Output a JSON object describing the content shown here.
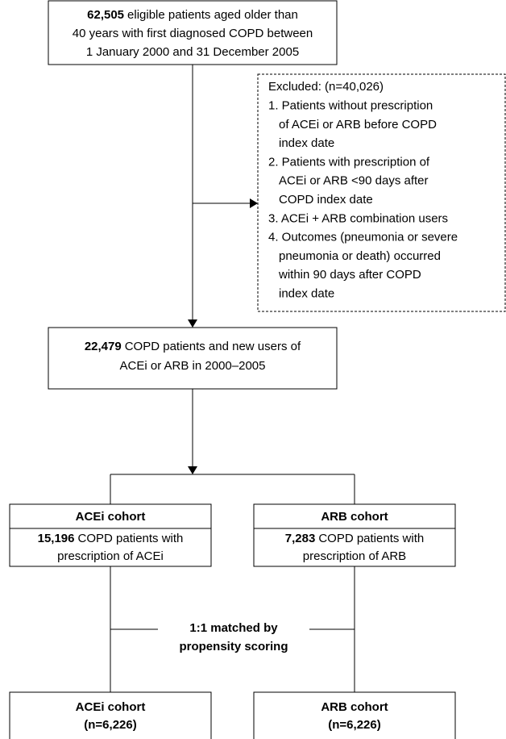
{
  "start": {
    "count": "62,505",
    "lines": [
      "eligible patients aged older than",
      "40 years with first diagnosed COPD between",
      "1 January 2000 and 31 December 2005"
    ]
  },
  "excluded": {
    "title": "Excluded: (n=40,026)",
    "lines": [
      "1. Patients without prescription",
      "of ACEi or ARB before COPD",
      "index date",
      "2. Patients with prescription of",
      "ACEi or ARB <90 days after",
      "COPD index date",
      "3. ACEi + ARB combination users",
      "4. Outcomes (pneumonia or severe",
      "pneumonia or death) occurred",
      "within 90 days after COPD",
      "index date"
    ]
  },
  "cohort": {
    "count": "22,479",
    "lines": [
      "COPD patients and new users of",
      "ACEi or ARB in 2000–2005"
    ]
  },
  "acei": {
    "title": "ACEi cohort",
    "count": "15,196",
    "lines": [
      "COPD patients with",
      "prescription of ACEi"
    ]
  },
  "arb": {
    "title": "ARB cohort",
    "count": "7,283",
    "lines": [
      "COPD patients with",
      "prescription of ARB"
    ]
  },
  "matching": [
    "1:1 matched by",
    "propensity scoring"
  ],
  "acei_matched": [
    "ACEi cohort",
    "(n=6,226)"
  ],
  "arb_matched": [
    "ARB cohort",
    "(n=6,226)"
  ]
}
